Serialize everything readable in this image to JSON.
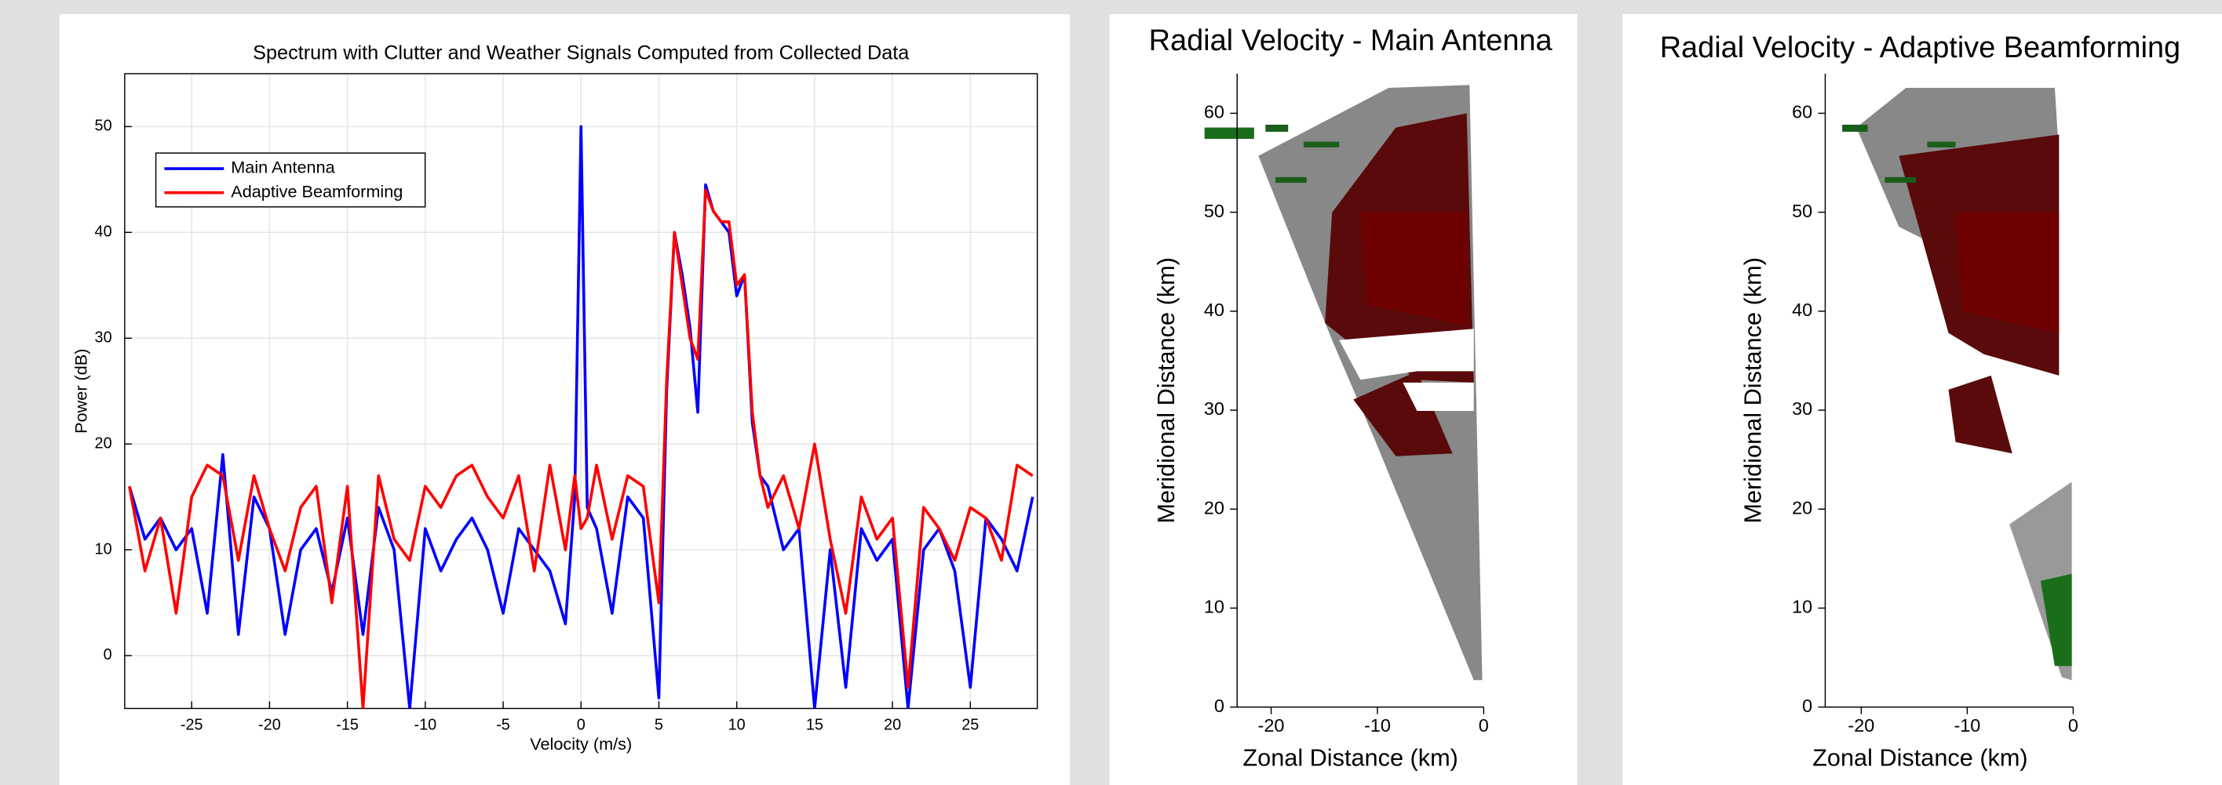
{
  "chart_data": [
    {
      "type": "line",
      "title": "Spectrum with Clutter and Weather Signals Computed from Collected Data",
      "xlabel": "Velocity (m/s)",
      "ylabel": "Power (dB)",
      "x": [
        -29,
        -28,
        -27,
        -26,
        -25,
        -24,
        -23,
        -22,
        -21,
        -20,
        -19,
        -18,
        -17,
        -16,
        -15,
        -14,
        -13,
        -12,
        -11,
        -10,
        -9,
        -8,
        -7,
        -6,
        -5,
        -4,
        -3,
        -2,
        -1,
        -0.4,
        0,
        0.4,
        1,
        2,
        3,
        4,
        5,
        5.5,
        6,
        6.5,
        7,
        7.5,
        8,
        8.5,
        9,
        9.5,
        10,
        10.5,
        11,
        11.5,
        12,
        13,
        14,
        15,
        16,
        17,
        18,
        19,
        20,
        21,
        22,
        23,
        24,
        25,
        26,
        27,
        28,
        29
      ],
      "series": [
        {
          "name": "Main Antenna",
          "color": "#0000ff",
          "values": [
            16,
            11,
            13,
            10,
            12,
            4,
            19,
            2,
            15,
            12,
            2,
            10,
            12,
            6,
            13,
            2,
            14,
            10,
            -5,
            12,
            8,
            11,
            13,
            10,
            4,
            12,
            10,
            8,
            3,
            15,
            50,
            14,
            12,
            4,
            15,
            13,
            -4,
            25,
            40,
            36,
            31,
            23,
            44.5,
            42,
            41,
            40,
            34,
            36,
            22,
            17,
            16,
            10,
            12,
            -5,
            10,
            -3,
            12,
            9,
            11,
            -5,
            10,
            12,
            8,
            -3,
            13,
            11,
            8,
            15
          ]
        },
        {
          "name": "Adaptive Beamforming",
          "color": "#ff0000",
          "values": [
            16,
            8,
            13,
            4,
            15,
            18,
            17,
            9,
            17,
            12,
            8,
            14,
            16,
            5,
            16,
            -5,
            17,
            11,
            9,
            16,
            14,
            17,
            18,
            15,
            13,
            17,
            8,
            18,
            10,
            17,
            12,
            13,
            18,
            11,
            17,
            16,
            5,
            26,
            40,
            35,
            30,
            28,
            44,
            42,
            41,
            41,
            35,
            36,
            23,
            17,
            14,
            17,
            12,
            20,
            11,
            4,
            15,
            11,
            13,
            -3,
            14,
            12,
            9,
            14,
            13,
            9,
            18,
            17
          ]
        }
      ],
      "xlim": [
        -29.3,
        29.3
      ],
      "xticks": [
        -25,
        -20,
        -15,
        -10,
        -5,
        0,
        5,
        10,
        15,
        20,
        25
      ],
      "ylim": [
        -5,
        55
      ],
      "yticks": [
        0,
        10,
        20,
        30,
        40,
        50
      ],
      "grid": true,
      "legend": "upper left"
    },
    {
      "type": "sector",
      "title": "Radial Velocity - Main Antenna",
      "xlabel": "Zonal Distance (km)",
      "ylabel": "Meridional Distance (km)",
      "xlim": [
        -23.2,
        0
      ],
      "xticks": [
        -20,
        -10,
        0
      ],
      "ylim": [
        0,
        64
      ],
      "yticks": [
        0,
        10,
        20,
        30,
        40,
        50,
        60
      ]
    },
    {
      "type": "sector",
      "title": "Radial Velocity - Adaptive Beamforming",
      "xlabel": "Zonal Distance (km)",
      "ylabel": "Meridional Distance (km)",
      "xlim": [
        -23.4,
        0
      ],
      "xticks": [
        -20,
        -10,
        0
      ],
      "ylim": [
        0,
        64
      ],
      "yticks": [
        0,
        10,
        20,
        30,
        40,
        50,
        60
      ]
    }
  ]
}
